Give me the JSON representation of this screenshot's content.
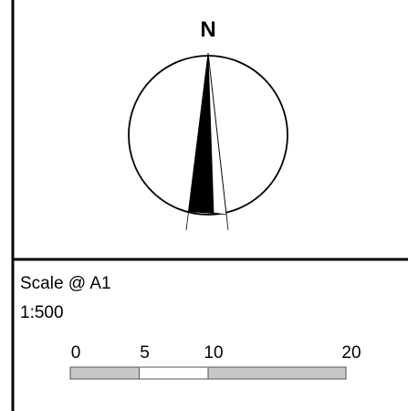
{
  "north_arrow": {
    "label": "N"
  },
  "scale": {
    "title": "Scale @ A1",
    "ratio": "1:500",
    "ticks": [
      0,
      5,
      10,
      20
    ]
  }
}
